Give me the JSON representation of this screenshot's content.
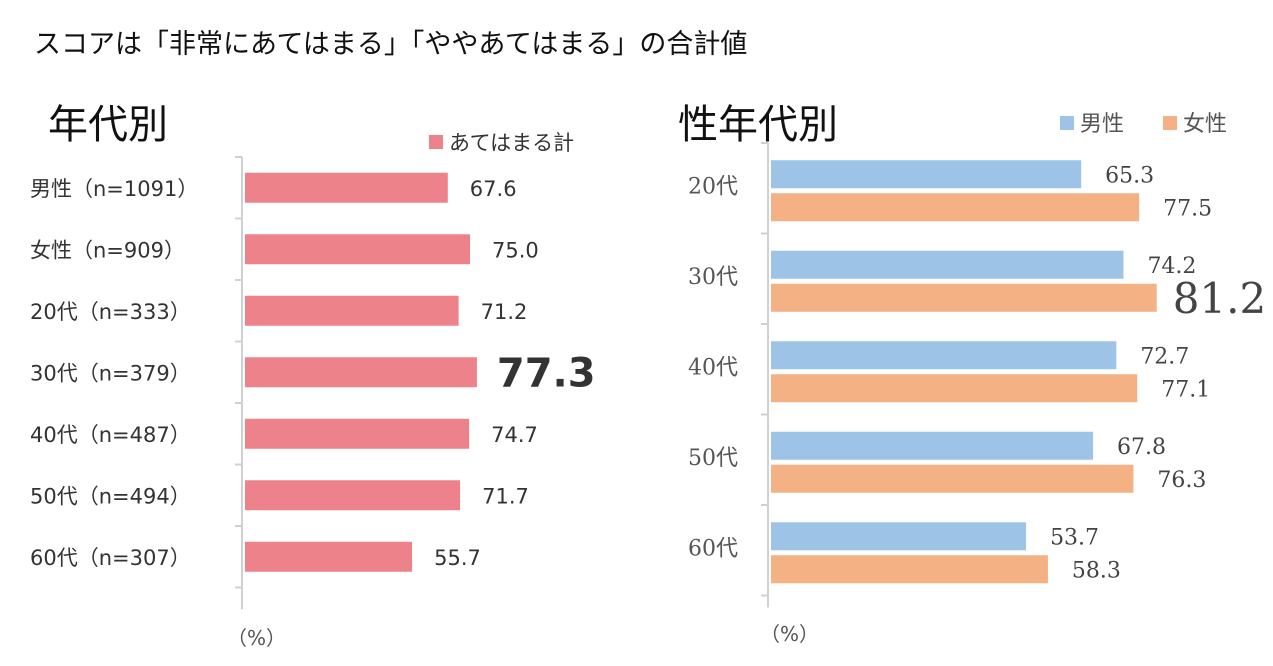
{
  "title": "スコアは「非常にあてはまる」「ややあてはまる」の合計値",
  "chart_data": [
    {
      "type": "bar",
      "orientation": "horizontal",
      "title": "年代別",
      "categories": [
        "男性（n=1091）",
        "女性（n=909）",
        "20代（n=333）",
        "30代（n=379）",
        "40代（n=487）",
        "50代（n=494）",
        "60代（n=307）"
      ],
      "series": [
        {
          "name": "あてはまる計",
          "color": "#ee828a",
          "values": [
            67.6,
            75.0,
            71.2,
            77.3,
            74.7,
            71.7,
            55.7
          ]
        }
      ],
      "highlight_index": 3,
      "xlim": [
        0,
        100
      ],
      "unit_label": "（%）",
      "legend_position": "top-right",
      "grid": false
    },
    {
      "type": "bar",
      "orientation": "horizontal",
      "title": "性年代別",
      "categories": [
        "20代",
        "30代",
        "40代",
        "50代",
        "60代"
      ],
      "series": [
        {
          "name": "男性",
          "color": "#9dc3e6",
          "values": [
            65.3,
            74.2,
            72.7,
            67.8,
            53.7
          ]
        },
        {
          "name": "女性",
          "color": "#f4b183",
          "values": [
            77.5,
            81.2,
            77.1,
            76.3,
            58.3
          ]
        }
      ],
      "highlight": {
        "series": 1,
        "index": 1
      },
      "xlim": [
        0,
        100
      ],
      "unit_label": "（%）",
      "legend_position": "top-right",
      "grid": false
    }
  ]
}
